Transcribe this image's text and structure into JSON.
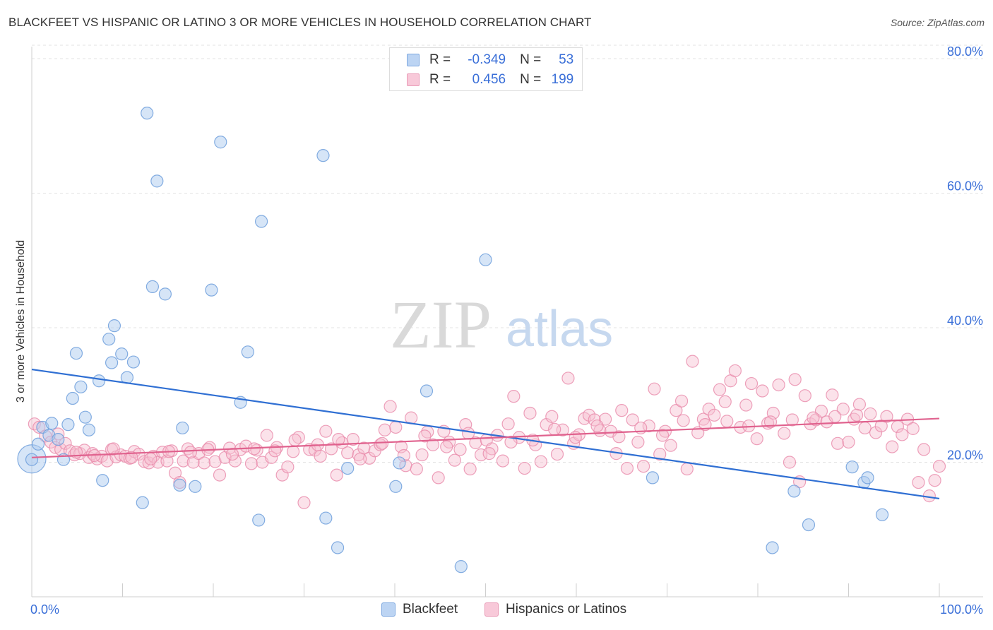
{
  "header": {
    "title": "BLACKFEET VS HISPANIC OR LATINO 3 OR MORE VEHICLES IN HOUSEHOLD CORRELATION CHART",
    "source": "Source: ZipAtlas.com"
  },
  "watermark": {
    "part1": "ZIP",
    "part2": "atlas"
  },
  "legend_top": {
    "rows": [
      {
        "r_label": "R =",
        "r_value": "-0.349",
        "n_label": "N =",
        "n_value": "53"
      },
      {
        "r_label": "R =",
        "r_value": "0.456",
        "n_label": "N =",
        "n_value": "199"
      }
    ]
  },
  "chart_data": {
    "type": "scatter",
    "title": "BLACKFEET VS HISPANIC OR LATINO 3 OR MORE VEHICLES IN HOUSEHOLD CORRELATION CHART",
    "xlabel": "",
    "ylabel": "3 or more Vehicles in Household",
    "xlim": [
      0,
      100
    ],
    "ylim": [
      0,
      82
    ],
    "x_tick_labels": [
      "0.0%",
      "100.0%"
    ],
    "y_ticks": [
      20,
      40,
      60,
      80
    ],
    "y_tick_labels": [
      "20.0%",
      "40.0%",
      "60.0%",
      "80.0%"
    ],
    "grid": true,
    "legend_placement": "bottom",
    "colors": {
      "blackfeet_fill": "#aecbf0",
      "blackfeet_stroke": "#6f9fdc",
      "blackfeet_line": "#2f6fd3",
      "hispanic_fill": "#f6bfd1",
      "hispanic_stroke": "#e88aaa",
      "hispanic_line": "#e0628e",
      "tick_label": "#3a6fd8"
    },
    "series": [
      {
        "name": "Blackfeet",
        "trend": {
          "x": [
            0,
            100
          ],
          "y": [
            33.8,
            14.6
          ]
        },
        "points": [
          [
            0.0,
            20.5
          ],
          [
            0.7,
            22.7
          ],
          [
            1.2,
            25.2
          ],
          [
            2.2,
            25.8
          ],
          [
            1.9,
            24.0
          ],
          [
            2.9,
            23.4
          ],
          [
            3.5,
            20.4
          ],
          [
            4.0,
            25.6
          ],
          [
            4.5,
            29.5
          ],
          [
            4.9,
            36.2
          ],
          [
            5.4,
            31.2
          ],
          [
            5.9,
            26.7
          ],
          [
            6.3,
            24.8
          ],
          [
            7.4,
            32.1
          ],
          [
            7.8,
            17.3
          ],
          [
            8.5,
            38.3
          ],
          [
            8.8,
            34.8
          ],
          [
            9.1,
            40.3
          ],
          [
            9.9,
            36.1
          ],
          [
            10.5,
            32.6
          ],
          [
            11.2,
            34.9
          ],
          [
            12.2,
            14.0
          ],
          [
            12.7,
            71.9
          ],
          [
            13.3,
            46.1
          ],
          [
            13.8,
            61.8
          ],
          [
            14.7,
            45.0
          ],
          [
            16.3,
            16.6
          ],
          [
            16.6,
            25.1
          ],
          [
            18.0,
            16.4
          ],
          [
            19.8,
            45.6
          ],
          [
            20.8,
            67.6
          ],
          [
            23.0,
            28.9
          ],
          [
            23.8,
            36.4
          ],
          [
            25.0,
            11.4
          ],
          [
            25.3,
            55.8
          ],
          [
            32.1,
            65.6
          ],
          [
            32.4,
            11.7
          ],
          [
            33.7,
            7.3
          ],
          [
            34.8,
            19.1
          ],
          [
            40.1,
            16.4
          ],
          [
            40.5,
            19.9
          ],
          [
            43.5,
            30.6
          ],
          [
            47.3,
            4.5
          ],
          [
            50.0,
            50.1
          ],
          [
            68.4,
            17.7
          ],
          [
            81.6,
            7.3
          ],
          [
            84.0,
            15.7
          ],
          [
            85.6,
            10.7
          ],
          [
            90.4,
            19.3
          ],
          [
            91.7,
            17.0
          ],
          [
            92.1,
            17.7
          ],
          [
            93.7,
            12.2
          ],
          [
            0.0,
            20.4
          ]
        ]
      },
      {
        "name": "Hispanics or Latinos",
        "trend": {
          "x": [
            0,
            100
          ],
          "y": [
            20.7,
            26.5
          ]
        },
        "points": [
          [
            0.3,
            25.7
          ],
          [
            0.8,
            25.2
          ],
          [
            1.5,
            23.9
          ],
          [
            2.1,
            23.0
          ],
          [
            2.6,
            22.2
          ],
          [
            3.2,
            21.9
          ],
          [
            3.7,
            22.8
          ],
          [
            4.2,
            21.7
          ],
          [
            4.7,
            21.1
          ],
          [
            5.3,
            21.3
          ],
          [
            5.8,
            21.8
          ],
          [
            6.3,
            20.7
          ],
          [
            6.7,
            21.3
          ],
          [
            7.2,
            20.5
          ],
          [
            7.7,
            20.9
          ],
          [
            8.3,
            20.2
          ],
          [
            8.8,
            21.9
          ],
          [
            9.3,
            20.8
          ],
          [
            9.8,
            21.1
          ],
          [
            10.3,
            20.9
          ],
          [
            10.8,
            20.6
          ],
          [
            11.3,
            21.6
          ],
          [
            11.8,
            21.2
          ],
          [
            12.4,
            20.1
          ],
          [
            12.9,
            19.9
          ],
          [
            13.4,
            20.9
          ],
          [
            13.9,
            20.0
          ],
          [
            14.4,
            21.5
          ],
          [
            14.9,
            20.2
          ],
          [
            15.4,
            21.7
          ],
          [
            15.8,
            18.4
          ],
          [
            16.3,
            17.0
          ],
          [
            16.7,
            20.2
          ],
          [
            17.2,
            22.0
          ],
          [
            17.8,
            20.0
          ],
          [
            18.4,
            21.3
          ],
          [
            19.0,
            19.9
          ],
          [
            19.6,
            22.2
          ],
          [
            20.2,
            20.1
          ],
          [
            20.7,
            18.1
          ],
          [
            21.3,
            20.7
          ],
          [
            21.8,
            22.1
          ],
          [
            22.4,
            20.2
          ],
          [
            23.0,
            21.9
          ],
          [
            23.6,
            22.4
          ],
          [
            24.2,
            19.8
          ],
          [
            24.8,
            21.8
          ],
          [
            25.4,
            20.0
          ],
          [
            25.9,
            24.0
          ],
          [
            26.4,
            20.7
          ],
          [
            27.0,
            22.2
          ],
          [
            27.6,
            18.1
          ],
          [
            28.2,
            19.3
          ],
          [
            28.8,
            21.6
          ],
          [
            29.4,
            23.7
          ],
          [
            30.0,
            14.0
          ],
          [
            30.6,
            21.9
          ],
          [
            31.2,
            21.8
          ],
          [
            31.8,
            20.9
          ],
          [
            32.4,
            24.6
          ],
          [
            33.0,
            22.0
          ],
          [
            33.6,
            18.1
          ],
          [
            34.2,
            22.9
          ],
          [
            34.8,
            21.4
          ],
          [
            35.4,
            23.4
          ],
          [
            36.0,
            21.1
          ],
          [
            36.6,
            22.1
          ],
          [
            37.2,
            20.6
          ],
          [
            37.8,
            21.7
          ],
          [
            38.4,
            22.6
          ],
          [
            38.9,
            24.8
          ],
          [
            39.5,
            28.3
          ],
          [
            40.1,
            25.2
          ],
          [
            40.7,
            22.3
          ],
          [
            41.2,
            19.5
          ],
          [
            41.8,
            26.6
          ],
          [
            42.4,
            19.0
          ],
          [
            43.0,
            21.1
          ],
          [
            43.6,
            24.5
          ],
          [
            44.2,
            22.6
          ],
          [
            44.8,
            17.7
          ],
          [
            45.4,
            24.6
          ],
          [
            46.0,
            23.0
          ],
          [
            46.6,
            20.3
          ],
          [
            47.2,
            21.9
          ],
          [
            47.8,
            25.6
          ],
          [
            48.3,
            19.0
          ],
          [
            48.9,
            22.9
          ],
          [
            49.5,
            21.1
          ],
          [
            50.1,
            23.3
          ],
          [
            50.7,
            22.0
          ],
          [
            51.3,
            24.0
          ],
          [
            51.9,
            20.2
          ],
          [
            52.5,
            25.7
          ],
          [
            53.1,
            29.8
          ],
          [
            53.7,
            23.7
          ],
          [
            54.3,
            19.1
          ],
          [
            54.9,
            27.3
          ],
          [
            55.5,
            22.6
          ],
          [
            56.1,
            20.1
          ],
          [
            56.7,
            25.6
          ],
          [
            57.3,
            26.8
          ],
          [
            57.9,
            21.2
          ],
          [
            58.5,
            24.8
          ],
          [
            59.1,
            32.5
          ],
          [
            59.7,
            22.8
          ],
          [
            60.3,
            24.1
          ],
          [
            60.9,
            26.5
          ],
          [
            61.4,
            27.0
          ],
          [
            62.0,
            26.3
          ],
          [
            62.6,
            24.7
          ],
          [
            63.2,
            26.4
          ],
          [
            63.8,
            24.6
          ],
          [
            64.4,
            21.3
          ],
          [
            65.0,
            27.7
          ],
          [
            65.6,
            19.1
          ],
          [
            66.2,
            26.3
          ],
          [
            66.8,
            23.0
          ],
          [
            67.4,
            19.4
          ],
          [
            68.0,
            25.4
          ],
          [
            68.6,
            30.9
          ],
          [
            69.2,
            21.2
          ],
          [
            69.8,
            24.6
          ],
          [
            70.4,
            22.5
          ],
          [
            71.0,
            27.7
          ],
          [
            71.6,
            29.1
          ],
          [
            72.2,
            19.0
          ],
          [
            72.8,
            35.0
          ],
          [
            73.4,
            24.4
          ],
          [
            74.0,
            26.4
          ],
          [
            74.6,
            27.9
          ],
          [
            75.2,
            27.0
          ],
          [
            75.8,
            30.8
          ],
          [
            76.4,
            29.0
          ],
          [
            77.0,
            32.1
          ],
          [
            77.5,
            33.6
          ],
          [
            78.1,
            25.2
          ],
          [
            78.7,
            28.5
          ],
          [
            79.3,
            31.7
          ],
          [
            79.9,
            23.5
          ],
          [
            80.5,
            30.6
          ],
          [
            81.1,
            25.8
          ],
          [
            81.7,
            27.3
          ],
          [
            82.3,
            31.5
          ],
          [
            82.9,
            24.3
          ],
          [
            83.5,
            20.0
          ],
          [
            84.1,
            32.3
          ],
          [
            84.6,
            17.1
          ],
          [
            85.2,
            29.9
          ],
          [
            85.8,
            25.7
          ],
          [
            86.4,
            26.3
          ],
          [
            87.0,
            27.6
          ],
          [
            87.6,
            26.0
          ],
          [
            88.2,
            30.0
          ],
          [
            88.8,
            22.8
          ],
          [
            89.4,
            27.9
          ],
          [
            90.0,
            23.0
          ],
          [
            90.6,
            26.4
          ],
          [
            91.2,
            28.6
          ],
          [
            91.8,
            25.1
          ],
          [
            92.4,
            27.2
          ],
          [
            93.0,
            24.4
          ],
          [
            93.6,
            25.4
          ],
          [
            94.2,
            26.8
          ],
          [
            94.8,
            22.3
          ],
          [
            95.4,
            25.3
          ],
          [
            95.9,
            24.1
          ],
          [
            96.5,
            26.4
          ],
          [
            97.1,
            25.0
          ],
          [
            97.7,
            17.0
          ],
          [
            98.3,
            21.9
          ],
          [
            98.9,
            15.0
          ],
          [
            99.5,
            17.3
          ],
          [
            100.0,
            19.4
          ],
          [
            2.9,
            24.2
          ],
          [
            4.9,
            21.5
          ],
          [
            6.9,
            21.0
          ],
          [
            9.0,
            22.0
          ],
          [
            11.0,
            20.7
          ],
          [
            13.1,
            20.5
          ],
          [
            15.1,
            21.6
          ],
          [
            17.5,
            21.5
          ],
          [
            19.4,
            21.9
          ],
          [
            22.1,
            21.2
          ],
          [
            24.5,
            22.0
          ],
          [
            26.8,
            21.7
          ],
          [
            29.0,
            23.3
          ],
          [
            31.5,
            22.6
          ],
          [
            33.8,
            23.4
          ],
          [
            36.2,
            20.5
          ],
          [
            38.6,
            22.8
          ],
          [
            41.0,
            21.0
          ],
          [
            43.3,
            23.9
          ],
          [
            45.7,
            22.3
          ],
          [
            48.1,
            24.3
          ],
          [
            50.4,
            21.3
          ],
          [
            52.8,
            23.0
          ],
          [
            55.2,
            23.3
          ],
          [
            57.6,
            24.9
          ],
          [
            59.9,
            23.7
          ],
          [
            62.3,
            25.4
          ],
          [
            64.7,
            23.8
          ],
          [
            67.1,
            25.1
          ],
          [
            69.5,
            24.0
          ],
          [
            71.8,
            26.2
          ],
          [
            74.2,
            25.6
          ],
          [
            76.6,
            26.1
          ],
          [
            79.0,
            25.4
          ],
          [
            81.4,
            26.0
          ],
          [
            83.8,
            26.3
          ],
          [
            86.1,
            26.6
          ],
          [
            88.5,
            26.8
          ],
          [
            90.9,
            27.0
          ]
        ]
      }
    ]
  },
  "bottom_legend": {
    "items": [
      {
        "label": "Blackfeet"
      },
      {
        "label": "Hispanics or Latinos"
      }
    ]
  }
}
